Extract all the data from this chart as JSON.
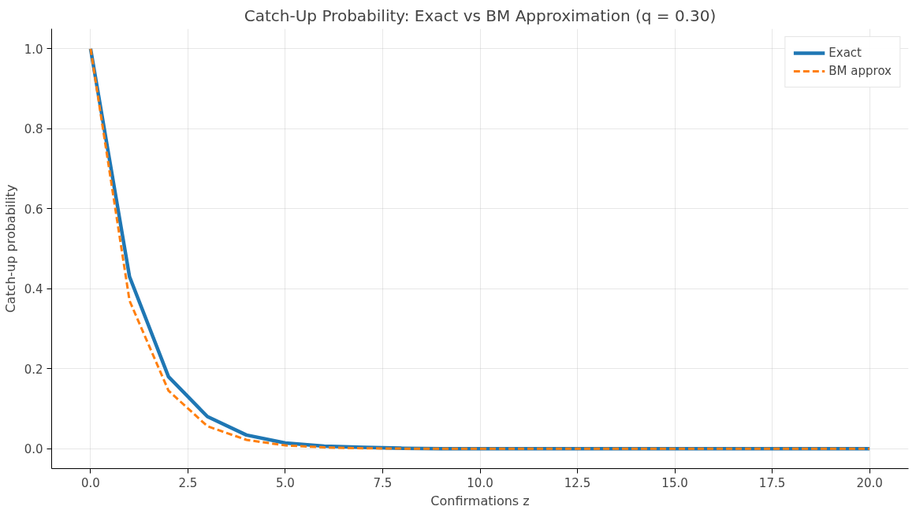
{
  "chart_data": {
    "type": "line",
    "title": "Catch-Up Probability: Exact vs BM Approximation (q = 0.30)",
    "xlabel": "Confirmations z",
    "ylabel": "Catch-up probability",
    "x": [
      0,
      1,
      2,
      3,
      4,
      5,
      6,
      7,
      8,
      9,
      10,
      11,
      12,
      13,
      14,
      15,
      16,
      17,
      18,
      19,
      20
    ],
    "series": [
      {
        "name": "Exact",
        "color": "#1f77b4",
        "line_style": "solid",
        "values": [
          1.0,
          0.43,
          0.18,
          0.08,
          0.034,
          0.014,
          0.006,
          0.003,
          0.001,
          0,
          0,
          0,
          0,
          0,
          0,
          0,
          0,
          0,
          0,
          0,
          0
        ]
      },
      {
        "name": "BM approx",
        "color": "#ff7f0e",
        "line_style": "dashed",
        "values": [
          1.0,
          0.37,
          0.145,
          0.056,
          0.022,
          0.008,
          0.003,
          0.001,
          0.0,
          0,
          0,
          0,
          0,
          0,
          0,
          0,
          0,
          0,
          0,
          0,
          0
        ]
      }
    ],
    "xlim": [
      -1,
      21
    ],
    "ylim": [
      -0.05,
      1.05
    ],
    "xticks": [
      {
        "value": 0,
        "label": "0.0"
      },
      {
        "value": 2.5,
        "label": "2.5"
      },
      {
        "value": 5,
        "label": "5.0"
      },
      {
        "value": 7.5,
        "label": "7.5"
      },
      {
        "value": 10,
        "label": "10.0"
      },
      {
        "value": 12.5,
        "label": "12.5"
      },
      {
        "value": 15,
        "label": "15.0"
      },
      {
        "value": 17.5,
        "label": "17.5"
      },
      {
        "value": 20,
        "label": "20.0"
      }
    ],
    "yticks": [
      {
        "value": 0,
        "label": "0.0"
      },
      {
        "value": 0.2,
        "label": "0.2"
      },
      {
        "value": 0.4,
        "label": "0.4"
      },
      {
        "value": 0.6,
        "label": "0.6"
      },
      {
        "value": 0.8,
        "label": "0.8"
      },
      {
        "value": 1,
        "label": "1.0"
      }
    ],
    "grid": true,
    "legend": "top right"
  }
}
